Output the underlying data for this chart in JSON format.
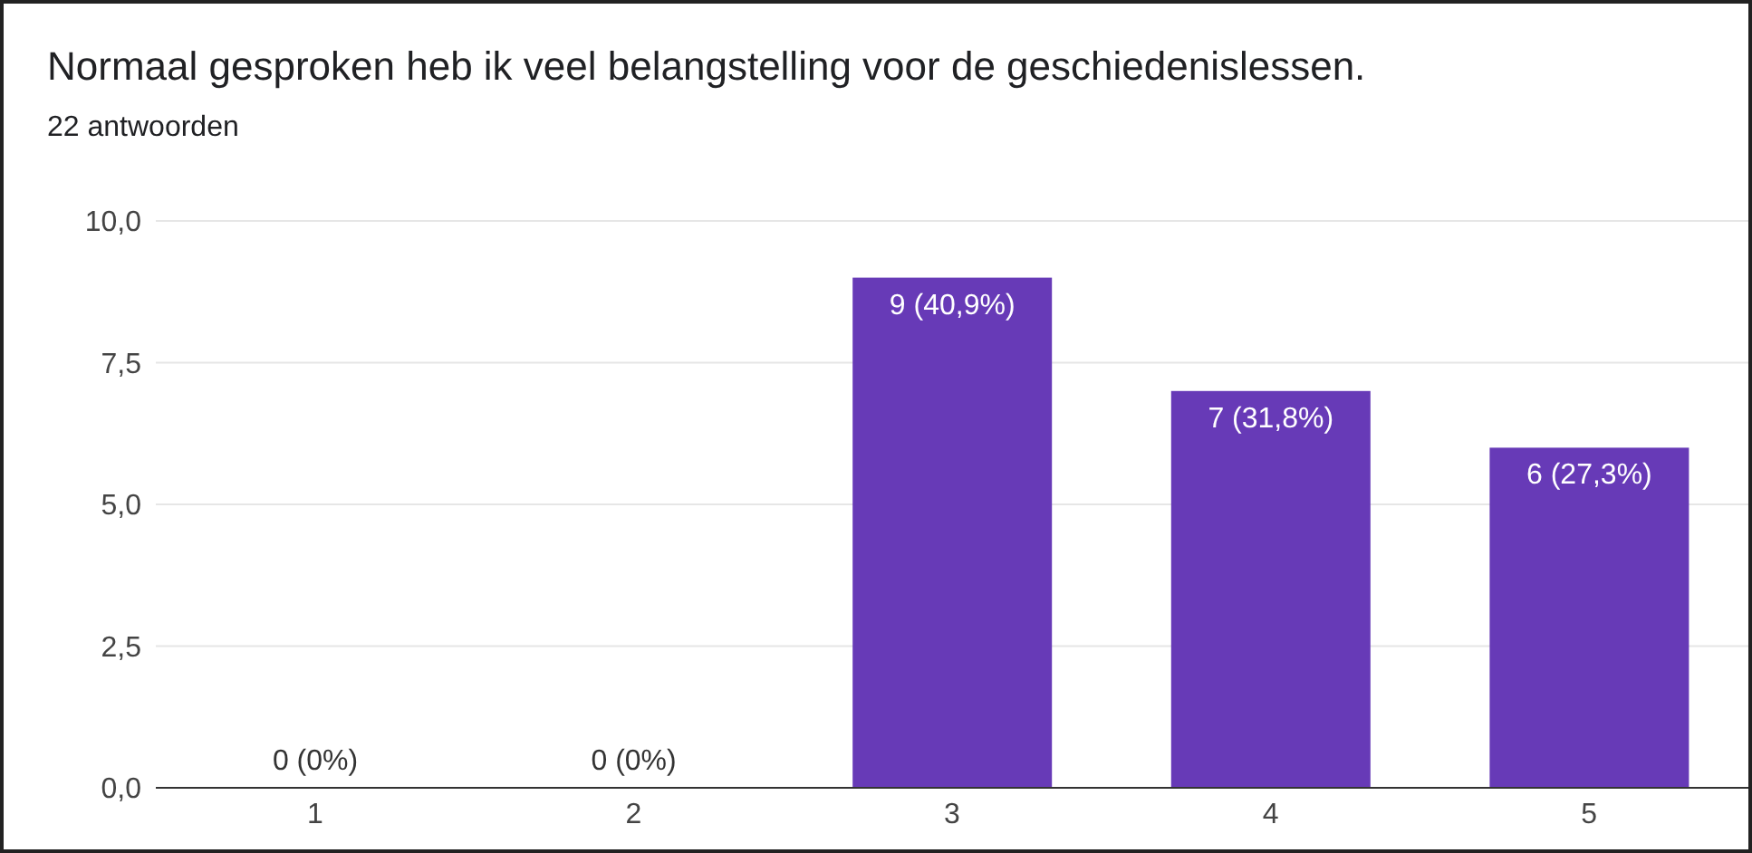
{
  "chart_data": {
    "type": "bar",
    "title": "Normaal gesproken heb ik veel belangstelling voor de geschiedenislessen.",
    "subtitle": "22 antwoorden",
    "categories": [
      "1",
      "2",
      "3",
      "4",
      "5"
    ],
    "values": [
      0,
      0,
      9,
      7,
      6
    ],
    "value_labels": [
      "0 (0%)",
      "0 (0%)",
      "9 (40,9%)",
      "7 (31,8%)",
      "6 (27,3%)"
    ],
    "color": "#673ab7",
    "ylim": [
      0,
      10
    ],
    "yticks": [
      {
        "value": 0,
        "label": "0,0"
      },
      {
        "value": 2.5,
        "label": "2,5"
      },
      {
        "value": 5,
        "label": "5,0"
      },
      {
        "value": 7.5,
        "label": "7,5"
      },
      {
        "value": 10,
        "label": "10,0"
      }
    ],
    "grid": "y"
  }
}
